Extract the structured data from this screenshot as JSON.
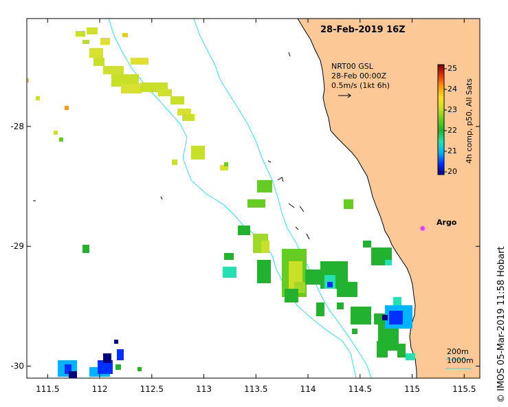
{
  "title": "28-Feb-2019 16Z",
  "credit": "© IMOS 05-Mar-2019 11:58 Hobart",
  "vector_legend": {
    "line1": "NRT00 GSL",
    "line2": "28-Feb 00:00Z",
    "line3": "0.5m/s (1kt 6h)"
  },
  "colorbar": {
    "title": "4h comp, p50, All Sats",
    "ticks": [
      "25",
      "24",
      "23",
      "22",
      "21",
      "20"
    ],
    "min": 20,
    "max": 25
  },
  "argo": {
    "label": "Argo",
    "lon": 115.1,
    "lat": -28.85,
    "color": "#e040e0"
  },
  "contours": {
    "label_200": "200m",
    "label_1000": "1000m"
  },
  "axes": {
    "x_ticks": [
      "111.5",
      "112",
      "112.5",
      "113",
      "113.5",
      "114",
      "114.5",
      "115",
      "115.5"
    ],
    "x_values": [
      111.5,
      112,
      112.5,
      113,
      113.5,
      114,
      114.5,
      115,
      115.5
    ],
    "y_ticks": [
      "-28",
      "-29",
      "-30"
    ],
    "y_values": [
      -28,
      -29,
      -30
    ],
    "xlim": [
      111.3,
      115.65
    ],
    "ylim": [
      -30.1,
      -27.1
    ]
  },
  "colors": {
    "land": "#fbc896",
    "contour": "#33e0e8",
    "colormap": [
      "#00007f",
      "#0030ff",
      "#00b4ff",
      "#25e0b0",
      "#22b230",
      "#66cc22",
      "#c8e028",
      "#ffe020",
      "#ff9c10",
      "#e03808",
      "#7f0000"
    ]
  }
}
